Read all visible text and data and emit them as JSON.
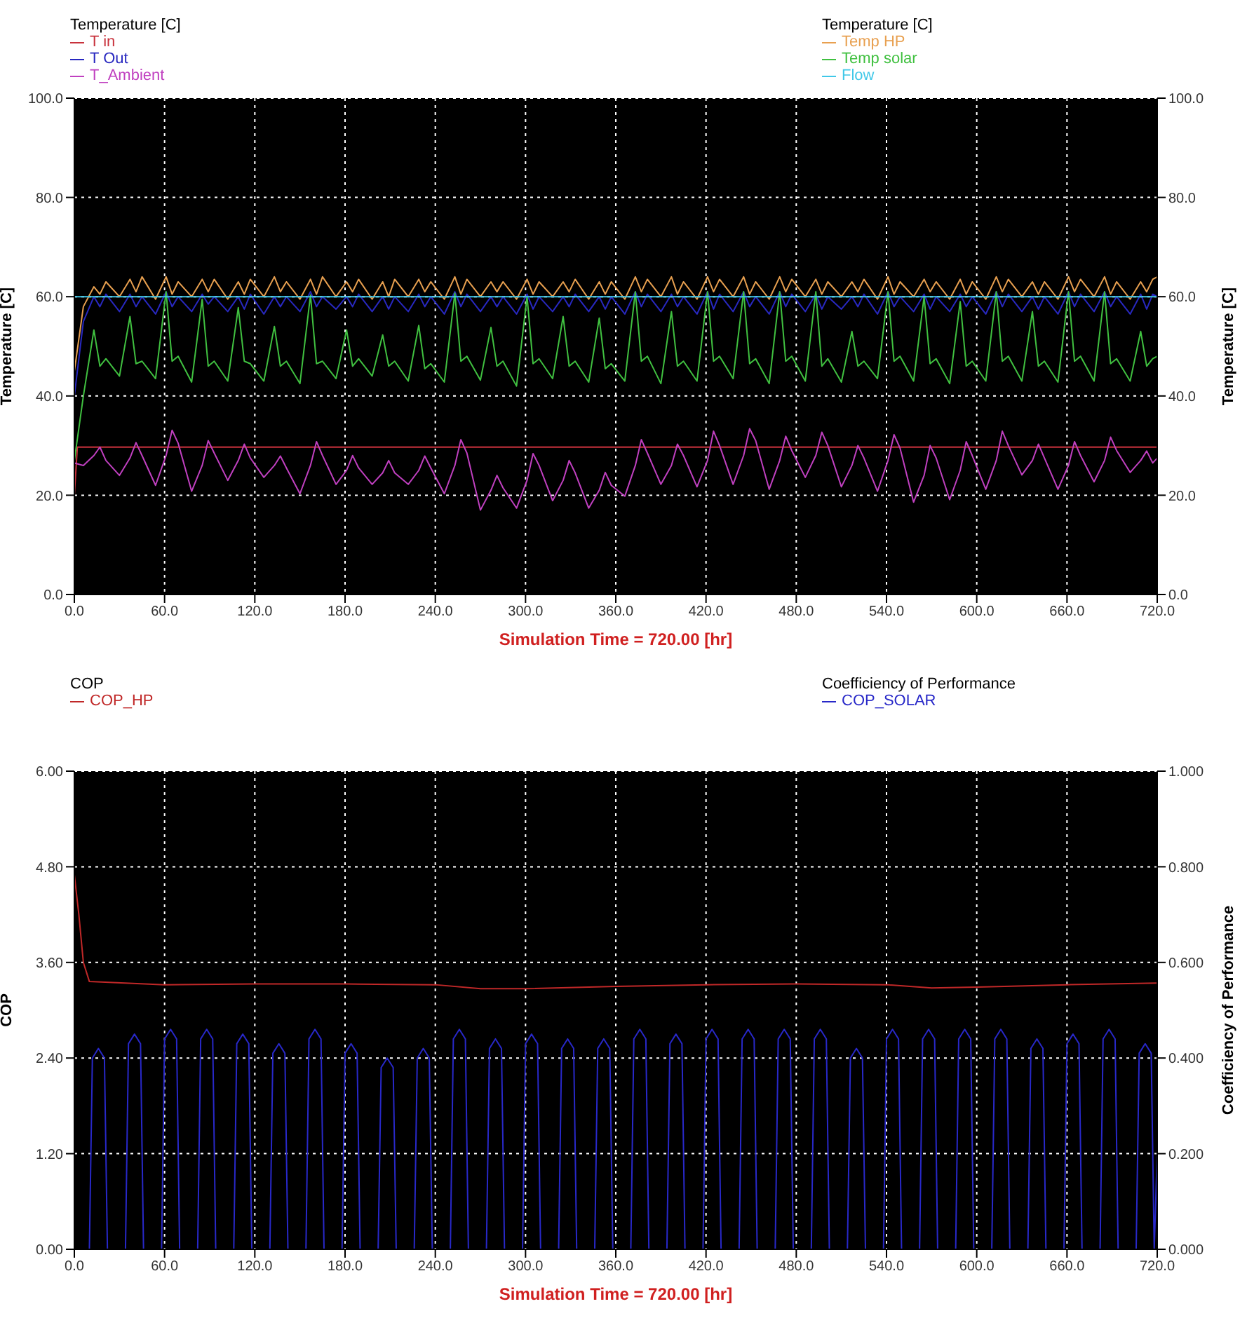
{
  "chart_data": [
    {
      "type": "line",
      "xlabel": "Simulation Time = 720.00 [hr]",
      "ylabel": "Temperature [C]",
      "y2label": "Temperature [C]",
      "legend": "top",
      "grid": true,
      "xlim": [
        0,
        720
      ],
      "xticks": [
        {
          "value": 0,
          "label": "0.0"
        },
        {
          "value": 60,
          "label": "60.0"
        },
        {
          "value": 120,
          "label": "120.0"
        },
        {
          "value": 180,
          "label": "180.0"
        },
        {
          "value": 240,
          "label": "240.0"
        },
        {
          "value": 300,
          "label": "300.0"
        },
        {
          "value": 360,
          "label": "360.0"
        },
        {
          "value": 420,
          "label": "420.0"
        },
        {
          "value": 480,
          "label": "480.0"
        },
        {
          "value": 540,
          "label": "540.0"
        },
        {
          "value": 600,
          "label": "600.0"
        },
        {
          "value": 660,
          "label": "660.0"
        },
        {
          "value": 720,
          "label": "720.0"
        }
      ],
      "ylim": [
        0,
        100
      ],
      "yticks": [
        {
          "value": 0,
          "label": "0.0"
        },
        {
          "value": 20,
          "label": "20.0"
        },
        {
          "value": 40,
          "label": "40.0"
        },
        {
          "value": 60,
          "label": "60.0"
        },
        {
          "value": 80,
          "label": "80.0"
        },
        {
          "value": 100,
          "label": "100.0"
        }
      ],
      "y2lim": [
        0,
        100
      ],
      "y2ticks": [
        {
          "value": 0,
          "label": "0.0"
        },
        {
          "value": 20,
          "label": "20.0"
        },
        {
          "value": 40,
          "label": "40.0"
        },
        {
          "value": 60,
          "label": "60.0"
        },
        {
          "value": 80,
          "label": "80.0"
        },
        {
          "value": 100,
          "label": "100.0"
        }
      ],
      "x": [
        0,
        6,
        13,
        17,
        21,
        30,
        37,
        41,
        45,
        54,
        61,
        65,
        69,
        78,
        85,
        89,
        93,
        102,
        109,
        113,
        117,
        126,
        133,
        137,
        141,
        150,
        157,
        161,
        165,
        174,
        181,
        185,
        189,
        198,
        205,
        209,
        213,
        222,
        229,
        233,
        237,
        246,
        253,
        257,
        261,
        270,
        277,
        281,
        285,
        294,
        301,
        305,
        309,
        318,
        325,
        329,
        333,
        342,
        349,
        353,
        357,
        366,
        373,
        377,
        381,
        390,
        397,
        401,
        405,
        414,
        421,
        425,
        429,
        438,
        445,
        449,
        453,
        462,
        469,
        473,
        477,
        486,
        493,
        497,
        501,
        510,
        517,
        521,
        525,
        534,
        541,
        545,
        549,
        558,
        565,
        569,
        573,
        582,
        589,
        593,
        597,
        606,
        613,
        617,
        621,
        630,
        637,
        641,
        645,
        654,
        661,
        665,
        669,
        678,
        685,
        689,
        693,
        702,
        709,
        713,
        717,
        720
      ],
      "series": [
        {
          "name": "T in",
          "color": "#c8323c",
          "x": [
            0,
            2,
            720
          ],
          "values": [
            20,
            29.7,
            29.7
          ]
        },
        {
          "name": "T Out",
          "color": "#2828c0",
          "values": [
            40,
            55,
            60,
            58,
            60.5,
            57,
            60.5,
            58,
            60,
            56.5,
            61,
            58,
            60,
            57,
            60.5,
            58.5,
            60,
            57,
            60,
            57.5,
            60.5,
            56.5,
            60,
            58,
            60,
            57,
            61,
            58,
            60,
            57.5,
            60,
            58,
            60.5,
            57,
            60,
            57.5,
            60,
            57,
            60.5,
            58,
            60,
            56.5,
            61,
            58,
            60.5,
            57,
            60,
            58,
            60,
            56.5,
            60.5,
            57.5,
            60,
            57,
            60,
            58,
            60.5,
            57,
            60,
            57.5,
            60,
            56.5,
            61,
            58,
            60.5,
            57,
            60.5,
            58,
            60,
            56.5,
            61,
            57.5,
            60.5,
            57,
            61,
            58,
            60,
            56.5,
            61,
            58,
            60.5,
            57,
            60.5,
            57.5,
            60,
            57.5,
            60,
            58,
            60.5,
            56.5,
            61,
            58,
            60,
            57,
            60.5,
            57.5,
            60,
            57,
            60.5,
            58,
            60,
            56.5,
            61,
            58,
            60.5,
            57,
            60,
            57.5,
            60,
            56.5,
            61,
            58,
            60.5,
            57,
            61,
            58,
            60,
            56.5,
            60.5,
            57.5,
            60.5,
            60
          ]
        },
        {
          "name": "T_Ambient",
          "color": "#c040c0",
          "values": [
            26.5,
            26,
            28,
            29.7,
            27,
            24,
            27.5,
            30.6,
            28,
            22,
            28,
            33.1,
            30.5,
            20.8,
            26,
            31,
            28.5,
            23,
            27,
            30.3,
            27.5,
            23.6,
            26,
            27.9,
            25.5,
            20.3,
            26,
            30.8,
            28,
            22.2,
            25,
            28,
            25.5,
            22.2,
            24.5,
            27,
            24.5,
            22.2,
            25,
            27.9,
            25.5,
            20.3,
            26,
            31.2,
            28.5,
            17,
            21,
            24,
            21.5,
            17.4,
            23,
            28.4,
            26,
            18.9,
            23,
            27,
            24.5,
            17.4,
            21,
            24.6,
            22,
            19.8,
            26,
            31.2,
            28.5,
            22.2,
            26,
            30.3,
            28,
            21.7,
            27,
            32.9,
            30,
            22.2,
            28,
            33.4,
            31,
            21.2,
            27,
            31.9,
            29,
            23.6,
            28,
            32.7,
            30,
            21.7,
            26,
            30,
            27.5,
            20.8,
            27,
            32.2,
            29.5,
            18.6,
            24,
            30,
            27.5,
            19.1,
            25,
            30.8,
            28,
            21.2,
            27,
            32.9,
            30,
            24.1,
            27,
            30.3,
            27.5,
            21.2,
            26,
            30.8,
            28,
            22.7,
            27,
            31.7,
            29,
            24.6,
            27,
            28.9,
            26.5,
            27.5
          ]
        },
        {
          "name": "Temp HP",
          "color": "#e8a050",
          "axis": "y2",
          "values": [
            45,
            58,
            62,
            60.5,
            63,
            60,
            63.5,
            61,
            64,
            59.5,
            64,
            60.5,
            63,
            60,
            63.5,
            61,
            63.5,
            59.5,
            63,
            60.5,
            63.5,
            60,
            64,
            61,
            63,
            59.5,
            63.5,
            60.5,
            64,
            60,
            63,
            61,
            63.5,
            59.5,
            63,
            60,
            63.5,
            60,
            63.5,
            61,
            63,
            59.5,
            64,
            60.5,
            63.5,
            60,
            63,
            61,
            63,
            59.5,
            63.5,
            60.5,
            63,
            60,
            63,
            61,
            63.5,
            59.5,
            63,
            60.5,
            63,
            59.5,
            64,
            61,
            63.5,
            60,
            64,
            60.5,
            63,
            59.5,
            64,
            61,
            63.5,
            60,
            64,
            60.5,
            63,
            59.5,
            64,
            61,
            63.5,
            60,
            63.5,
            60.5,
            63,
            60,
            63,
            61,
            63.5,
            59.5,
            64,
            60.5,
            63,
            60,
            63.5,
            61,
            63,
            59.5,
            63.5,
            60.5,
            63,
            59.5,
            64,
            61,
            63.5,
            60,
            63,
            60.5,
            63,
            59.5,
            64,
            61,
            63.5,
            60,
            64,
            60.5,
            63,
            59.5,
            63,
            61,
            63.5,
            64
          ]
        },
        {
          "name": "Temp solar",
          "color": "#40c040",
          "axis": "y2",
          "values": [
            27,
            40,
            53.3,
            46,
            47.5,
            44,
            56,
            46.5,
            47,
            43.5,
            61,
            47,
            48,
            42.8,
            59.5,
            46,
            47,
            43,
            57.8,
            47,
            46.5,
            43,
            54,
            46,
            47,
            42.5,
            60.3,
            46.5,
            47,
            43.5,
            53.3,
            46,
            47.5,
            44,
            52.3,
            46,
            47,
            43,
            54.2,
            45.5,
            46.5,
            42.8,
            60.7,
            47,
            48,
            43.2,
            53.8,
            46,
            47,
            42,
            60,
            46.5,
            47.5,
            43.5,
            56,
            46,
            47,
            42.8,
            55.7,
            45.5,
            46.5,
            43,
            61,
            47,
            48,
            42.5,
            57,
            46,
            47,
            43,
            61,
            47,
            48,
            43.5,
            61,
            46.5,
            47.5,
            42.5,
            61,
            47,
            48,
            43,
            61,
            46,
            47.5,
            42.8,
            53,
            46,
            47,
            43.5,
            61,
            47,
            48,
            43,
            60,
            46.5,
            47.5,
            42.5,
            59,
            46,
            47,
            43,
            61,
            47,
            48,
            43,
            57,
            46,
            47,
            42.8,
            61,
            47,
            48,
            43,
            61,
            46.5,
            47.5,
            43,
            53,
            46,
            47.5,
            48
          ]
        },
        {
          "name": "Flow",
          "color": "#40c8e8",
          "axis": "y2",
          "x": [
            0,
            720
          ],
          "values": [
            60,
            60
          ]
        }
      ]
    },
    {
      "type": "line",
      "xlabel": "Simulation Time = 720.00 [hr]",
      "ylabel": "COP",
      "y2label": "Coefficiency of Performance",
      "legend": "top",
      "grid": true,
      "xlim": [
        0,
        720
      ],
      "xticks": [
        {
          "value": 0,
          "label": "0.0"
        },
        {
          "value": 60,
          "label": "60.0"
        },
        {
          "value": 120,
          "label": "120.0"
        },
        {
          "value": 180,
          "label": "180.0"
        },
        {
          "value": 240,
          "label": "240.0"
        },
        {
          "value": 300,
          "label": "300.0"
        },
        {
          "value": 360,
          "label": "360.0"
        },
        {
          "value": 420,
          "label": "420.0"
        },
        {
          "value": 480,
          "label": "480.0"
        },
        {
          "value": 540,
          "label": "540.0"
        },
        {
          "value": 600,
          "label": "600.0"
        },
        {
          "value": 660,
          "label": "660.0"
        },
        {
          "value": 720,
          "label": "720.0"
        }
      ],
      "ylim": [
        0,
        6
      ],
      "yticks": [
        {
          "value": 0,
          "label": "0.00"
        },
        {
          "value": 1.2,
          "label": "1.20"
        },
        {
          "value": 2.4,
          "label": "2.40"
        },
        {
          "value": 3.6,
          "label": "3.60"
        },
        {
          "value": 4.8,
          "label": "4.80"
        },
        {
          "value": 6,
          "label": "6.00"
        }
      ],
      "y2lim": [
        0,
        1
      ],
      "y2ticks": [
        {
          "value": 0,
          "label": "0.000"
        },
        {
          "value": 0.2,
          "label": "0.200"
        },
        {
          "value": 0.4,
          "label": "0.400"
        },
        {
          "value": 0.6,
          "label": "0.600"
        },
        {
          "value": 0.8,
          "label": "0.800"
        },
        {
          "value": 1,
          "label": "1.000"
        }
      ],
      "series": [
        {
          "name": "COP_HP",
          "color": "#c02828",
          "x": [
            0,
            3,
            6,
            10,
            60,
            120,
            180,
            240,
            270,
            300,
            360,
            420,
            480,
            540,
            570,
            600,
            660,
            720
          ],
          "values": [
            4.7,
            4.2,
            3.6,
            3.36,
            3.32,
            3.33,
            3.33,
            3.32,
            3.27,
            3.27,
            3.3,
            3.32,
            3.33,
            3.32,
            3.28,
            3.29,
            3.32,
            3.34
          ]
        },
        {
          "name": "COP_SOLAR",
          "color": "#2828c8",
          "axis": "y2",
          "x": [
            0,
            10,
            12,
            16,
            20,
            22,
            34,
            36,
            40,
            44,
            46,
            58,
            60,
            64,
            68,
            70,
            82,
            84,
            88,
            92,
            94,
            106,
            108,
            112,
            116,
            118,
            130,
            132,
            136,
            140,
            142,
            154,
            156,
            160,
            164,
            166,
            178,
            180,
            184,
            188,
            190,
            202,
            204,
            208,
            212,
            214,
            226,
            228,
            232,
            236,
            238,
            250,
            252,
            256,
            260,
            262,
            274,
            276,
            280,
            284,
            286,
            298,
            300,
            304,
            308,
            310,
            322,
            324,
            328,
            332,
            334,
            346,
            348,
            352,
            356,
            358,
            370,
            372,
            376,
            380,
            382,
            394,
            396,
            400,
            404,
            406,
            418,
            420,
            424,
            428,
            430,
            442,
            444,
            448,
            452,
            454,
            466,
            468,
            472,
            476,
            478,
            490,
            492,
            496,
            500,
            502,
            514,
            516,
            520,
            524,
            526,
            538,
            540,
            544,
            548,
            550,
            562,
            564,
            568,
            572,
            574,
            586,
            588,
            592,
            596,
            598,
            610,
            612,
            616,
            620,
            622,
            634,
            636,
            640,
            644,
            646,
            658,
            660,
            664,
            668,
            670,
            682,
            684,
            688,
            692,
            694,
            706,
            708,
            712,
            716,
            718,
            720
          ],
          "values": [
            0,
            0,
            0.4,
            0.42,
            0.4,
            0,
            0,
            0.43,
            0.45,
            0.43,
            0,
            0,
            0.44,
            0.46,
            0.44,
            0,
            0,
            0.44,
            0.46,
            0.44,
            0,
            0,
            0.43,
            0.45,
            0.43,
            0,
            0,
            0.41,
            0.43,
            0.41,
            0,
            0,
            0.44,
            0.46,
            0.44,
            0,
            0,
            0.41,
            0.43,
            0.41,
            0,
            0,
            0.38,
            0.4,
            0.38,
            0,
            0,
            0.4,
            0.42,
            0.4,
            0,
            0,
            0.44,
            0.46,
            0.44,
            0,
            0,
            0.42,
            0.44,
            0.42,
            0,
            0,
            0.43,
            0.45,
            0.43,
            0,
            0,
            0.42,
            0.44,
            0.42,
            0,
            0,
            0.42,
            0.44,
            0.42,
            0,
            0,
            0.44,
            0.46,
            0.44,
            0,
            0,
            0.43,
            0.45,
            0.43,
            0,
            0,
            0.44,
            0.46,
            0.44,
            0,
            0,
            0.44,
            0.46,
            0.44,
            0,
            0,
            0.44,
            0.46,
            0.44,
            0,
            0,
            0.44,
            0.46,
            0.44,
            0,
            0,
            0.4,
            0.42,
            0.4,
            0,
            0,
            0.44,
            0.46,
            0.44,
            0,
            0,
            0.44,
            0.46,
            0.44,
            0,
            0,
            0.44,
            0.46,
            0.44,
            0,
            0,
            0.44,
            0.46,
            0.44,
            0,
            0,
            0.42,
            0.44,
            0.42,
            0,
            0,
            0.43,
            0.45,
            0.43,
            0,
            0,
            0.44,
            0.46,
            0.44,
            0,
            0,
            0.41,
            0.43,
            0.41,
            0,
            0.2
          ]
        }
      ]
    }
  ]
}
